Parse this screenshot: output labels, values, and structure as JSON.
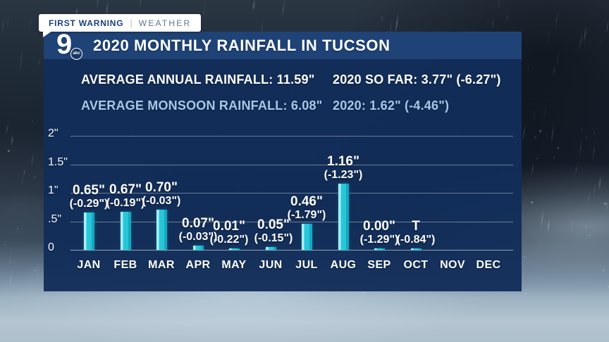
{
  "badge": {
    "primary": "FIRST WARNING",
    "separator": "|",
    "secondary": "WEATHER"
  },
  "header": {
    "title": "2020 MONTHLY RAINFALL IN TUCSON",
    "logo": {
      "number": "9",
      "network": "abc"
    }
  },
  "stats": {
    "annual": "AVERAGE ANNUAL RAINFALL: 11.59\"",
    "so_far": "2020 SO FAR: 3.77\" (-6.27\")",
    "monsoon_avg": "AVERAGE MONSOON RAINFALL: 6.08\"",
    "monsoon_2020": "2020: 1.62\" (-4.46\")"
  },
  "colors": {
    "bar_main": "#29c6da",
    "bar_highlight": "#a9f0f6",
    "panel_bg": "#122e59",
    "titlebar_bg": "#1f4377",
    "stats_secondary": "#a7c7ea",
    "badge_primary_text": "#1b3f77",
    "badge_secondary_text": "#5e7589"
  },
  "chart_data": {
    "type": "bar",
    "title": "2020 MONTHLY RAINFALL IN TUCSON",
    "unit": "inches",
    "ylabel": "",
    "xlabel": "",
    "ylim": [
      0,
      2.2
    ],
    "grid": true,
    "y_ticks": [
      "2\"",
      "1.5\"",
      "1\"",
      ".5\"",
      "0"
    ],
    "y_tick_values": [
      2,
      1.5,
      1,
      0.5,
      0
    ],
    "categories": [
      "JAN",
      "FEB",
      "MAR",
      "APR",
      "MAY",
      "JUN",
      "JUL",
      "AUG",
      "SEP",
      "OCT",
      "NOV",
      "DEC"
    ],
    "months": [
      {
        "month": "JAN",
        "value": 0.65,
        "value_label": "0.65\"",
        "deficit_label": "(-0.29\")",
        "dx": 0
      },
      {
        "month": "FEB",
        "value": 0.67,
        "value_label": "0.67\"",
        "deficit_label": "(-0.19\")",
        "dx": 0
      },
      {
        "month": "MAR",
        "value": 0.7,
        "value_label": "0.70\"",
        "deficit_label": "(-0.03\")",
        "dx": 0
      },
      {
        "month": "APR",
        "value": 0.07,
        "value_label": "0.07\"",
        "deficit_label": "(-0.03\")",
        "dx": 0
      },
      {
        "month": "MAY",
        "value": 0.01,
        "value_label": "0.01\"",
        "deficit_label": "(-0.22\")",
        "dx": -7
      },
      {
        "month": "JUN",
        "value": 0.05,
        "value_label": "0.05\"",
        "deficit_label": "(-0.15\")",
        "dx": 4
      },
      {
        "month": "JUL",
        "value": 0.46,
        "value_label": "0.46\"",
        "deficit_label": "(-1.79\")",
        "dx": 0
      },
      {
        "month": "AUG",
        "value": 1.16,
        "value_label": "1.16\"",
        "deficit_label": "(-1.23\")",
        "dx": 0
      },
      {
        "month": "SEP",
        "value": 0.0,
        "value_label": "0.00\"",
        "deficit_label": "(-1.29\")",
        "dx": 0
      },
      {
        "month": "OCT",
        "value": 0.0,
        "trace": true,
        "value_label": "T",
        "deficit_label": "(-0.84\")",
        "dx": 0
      },
      {
        "month": "NOV",
        "value": null,
        "value_label": null,
        "deficit_label": null
      },
      {
        "month": "DEC",
        "value": null,
        "value_label": null,
        "deficit_label": null
      }
    ]
  }
}
